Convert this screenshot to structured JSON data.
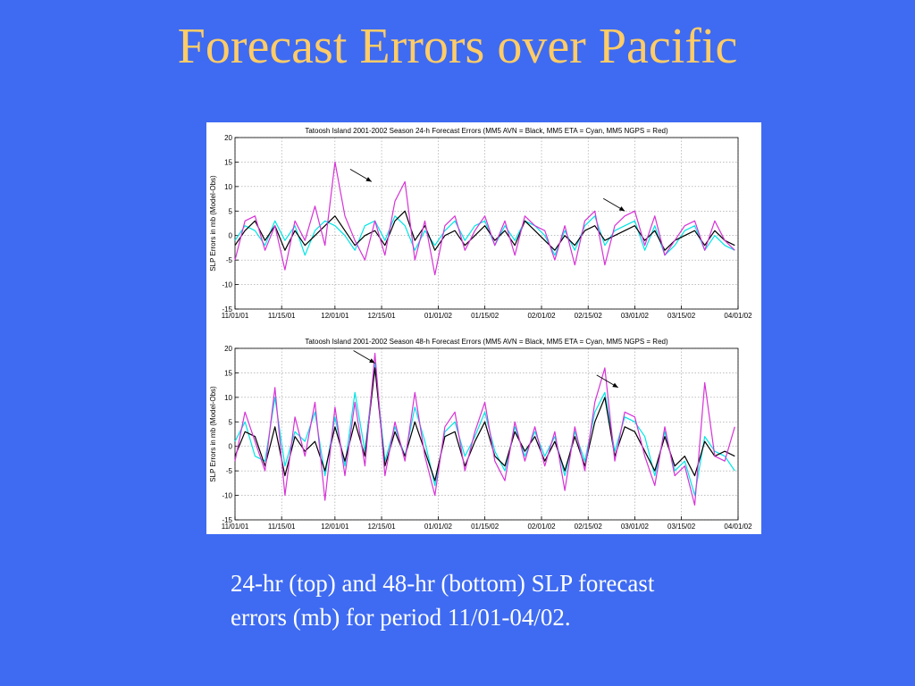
{
  "slide": {
    "title": "Forecast Errors over Pacific",
    "caption_line1": "24-hr (top) and 48-hr (bottom) SLP forecast",
    "caption_line2": "errors (mb) for period 11/01-04/02."
  },
  "colors": {
    "background": "#3f6bf2",
    "title": "#ffcc66",
    "avn": "#000000",
    "eta": "#00e5e5",
    "ngps": "#d633d6"
  },
  "chart_data": [
    {
      "type": "line",
      "title": "Tatoosh Island 2001-2002 Season 24-h Forecast Errors (MM5 AVN = Black, MM5 ETA = Cyan, MM5 NGPS = Red)",
      "ylabel": "SLP Errors in mb (Model-Obs)",
      "xlabel": "",
      "xlim": [
        "2001-11-01",
        "2002-04-01"
      ],
      "ylim": [
        -15,
        20
      ],
      "yticks": [
        -15,
        -10,
        -5,
        0,
        5,
        10,
        15,
        20
      ],
      "xtick_labels": [
        "11/01/01",
        "11/15/01",
        "12/01/01",
        "12/15/01",
        "01/01/02",
        "01/15/02",
        "02/01/02",
        "02/15/02",
        "03/01/02",
        "03/15/02",
        "04/01/02"
      ],
      "grid": true,
      "x": [
        "2001-11-01",
        "2001-11-04",
        "2001-11-07",
        "2001-11-10",
        "2001-11-13",
        "2001-11-16",
        "2001-11-19",
        "2001-11-22",
        "2001-11-25",
        "2001-11-28",
        "2001-12-01",
        "2001-12-04",
        "2001-12-07",
        "2001-12-10",
        "2001-12-13",
        "2001-12-16",
        "2001-12-19",
        "2001-12-22",
        "2001-12-25",
        "2001-12-28",
        "2001-12-31",
        "2002-01-03",
        "2002-01-06",
        "2002-01-09",
        "2002-01-12",
        "2002-01-15",
        "2002-01-18",
        "2002-01-21",
        "2002-01-24",
        "2002-01-27",
        "2002-01-30",
        "2002-02-02",
        "2002-02-05",
        "2002-02-08",
        "2002-02-11",
        "2002-02-14",
        "2002-02-17",
        "2002-02-20",
        "2002-02-23",
        "2002-02-26",
        "2002-03-01",
        "2002-03-04",
        "2002-03-07",
        "2002-03-10",
        "2002-03-13",
        "2002-03-16",
        "2002-03-19",
        "2002-03-22",
        "2002-03-25",
        "2002-03-28",
        "2002-03-31"
      ],
      "series": [
        {
          "name": "MM5 AVN",
          "color": "#000000",
          "values": [
            -2,
            1,
            3,
            -1,
            2,
            -3,
            1,
            -2,
            0,
            2,
            4,
            1,
            -2,
            0,
            1,
            -2,
            3,
            5,
            -1,
            2,
            -3,
            0,
            1,
            -2,
            0,
            2,
            -1,
            1,
            -2,
            3,
            1,
            -1,
            -3,
            0,
            -2,
            1,
            2,
            -1,
            0,
            1,
            2,
            -1,
            1,
            -3,
            -1,
            0,
            1,
            -2,
            1,
            -1,
            -2
          ]
        },
        {
          "name": "MM5 ETA",
          "color": "#00e5e5",
          "values": [
            -1,
            2,
            1,
            -2,
            3,
            -1,
            2,
            -4,
            1,
            3,
            2,
            0,
            -3,
            2,
            3,
            -1,
            4,
            2,
            -3,
            1,
            -2,
            1,
            3,
            -1,
            2,
            3,
            -2,
            2,
            -1,
            3,
            2,
            0,
            -4,
            1,
            -3,
            2,
            4,
            -2,
            1,
            2,
            3,
            -3,
            2,
            -4,
            -2,
            1,
            2,
            -3,
            0,
            -2,
            -3
          ]
        },
        {
          "name": "MM5 NGPS",
          "color": "#d633d6",
          "values": [
            -5,
            3,
            4,
            -3,
            2,
            -7,
            3,
            -1,
            6,
            -2,
            15,
            4,
            -1,
            -5,
            3,
            -4,
            7,
            11,
            -5,
            3,
            -8,
            2,
            4,
            -3,
            1,
            4,
            -2,
            3,
            -4,
            4,
            2,
            1,
            -5,
            2,
            -6,
            3,
            5,
            -6,
            2,
            4,
            5,
            -2,
            4,
            -4,
            -1,
            2,
            3,
            -3,
            3,
            -1,
            -3
          ]
        }
      ],
      "annotations": [
        {
          "type": "arrow",
          "x": "2001-12-12",
          "y": 11
        },
        {
          "type": "arrow",
          "x": "2002-02-26",
          "y": 5
        }
      ]
    },
    {
      "type": "line",
      "title": "Tatoosh Island 2001-2002 Season 48-h Forecast Errors (MM5 AVN = Black, MM5 ETA = Cyan, MM5 NGPS = Red)",
      "ylabel": "SLP Errors in mb (Model-Obs)",
      "xlabel": "",
      "xlim": [
        "2001-11-01",
        "2002-04-01"
      ],
      "ylim": [
        -15,
        20
      ],
      "yticks": [
        -15,
        -10,
        -5,
        0,
        5,
        10,
        15,
        20
      ],
      "xtick_labels": [
        "11/01/01",
        "11/15/01",
        "12/01/01",
        "12/15/01",
        "01/01/02",
        "01/15/02",
        "02/01/02",
        "02/15/02",
        "03/01/02",
        "03/15/02",
        "04/01/02"
      ],
      "grid": true,
      "x": [
        "2001-11-01",
        "2001-11-04",
        "2001-11-07",
        "2001-11-10",
        "2001-11-13",
        "2001-11-16",
        "2001-11-19",
        "2001-11-22",
        "2001-11-25",
        "2001-11-28",
        "2001-12-01",
        "2001-12-04",
        "2001-12-07",
        "2001-12-10",
        "2001-12-13",
        "2001-12-16",
        "2001-12-19",
        "2001-12-22",
        "2001-12-25",
        "2001-12-28",
        "2001-12-31",
        "2002-01-03",
        "2002-01-06",
        "2002-01-09",
        "2002-01-12",
        "2002-01-15",
        "2002-01-18",
        "2002-01-21",
        "2002-01-24",
        "2002-01-27",
        "2002-01-30",
        "2002-02-02",
        "2002-02-05",
        "2002-02-08",
        "2002-02-11",
        "2002-02-14",
        "2002-02-17",
        "2002-02-20",
        "2002-02-23",
        "2002-02-26",
        "2002-03-01",
        "2002-03-04",
        "2002-03-07",
        "2002-03-10",
        "2002-03-13",
        "2002-03-16",
        "2002-03-19",
        "2002-03-22",
        "2002-03-25",
        "2002-03-28",
        "2002-03-31"
      ],
      "series": [
        {
          "name": "MM5 AVN",
          "color": "#000000",
          "values": [
            -2,
            3,
            2,
            -4,
            4,
            -6,
            2,
            -1,
            1,
            -5,
            4,
            -3,
            5,
            -2,
            16,
            -4,
            3,
            -2,
            5,
            -1,
            -7,
            2,
            3,
            -4,
            1,
            5,
            -2,
            -4,
            3,
            -1,
            2,
            -3,
            1,
            -5,
            2,
            -4,
            5,
            10,
            -2,
            4,
            3,
            -1,
            -5,
            2,
            -4,
            -2,
            -6,
            1,
            -2,
            -1,
            -2
          ]
        },
        {
          "name": "MM5 ETA",
          "color": "#00e5e5",
          "values": [
            1,
            5,
            -2,
            -3,
            10,
            -4,
            3,
            1,
            7,
            -6,
            6,
            -4,
            11,
            -1,
            17,
            -3,
            4,
            -2,
            8,
            1,
            -8,
            3,
            5,
            -2,
            2,
            7,
            -1,
            -5,
            4,
            -2,
            3,
            -2,
            2,
            -6,
            3,
            -3,
            7,
            11,
            -1,
            6,
            5,
            2,
            -6,
            3,
            -5,
            -3,
            -10,
            2,
            -1,
            -2,
            -5
          ]
        },
        {
          "name": "MM5 NGPS",
          "color": "#d633d6",
          "values": [
            -3,
            7,
            1,
            -5,
            12,
            -10,
            6,
            -2,
            9,
            -11,
            8,
            -6,
            9,
            -4,
            19,
            -6,
            5,
            -3,
            11,
            -2,
            -10,
            4,
            7,
            -5,
            3,
            9,
            -3,
            -7,
            5,
            -3,
            4,
            -4,
            3,
            -9,
            4,
            -5,
            9,
            16,
            -3,
            7,
            6,
            -2,
            -8,
            4,
            -6,
            -4,
            -12,
            13,
            -2,
            -3,
            4
          ]
        }
      ],
      "annotations": [
        {
          "type": "arrow",
          "x": "2001-12-13",
          "y": 17
        },
        {
          "type": "arrow",
          "x": "2002-02-24",
          "y": 12
        }
      ]
    }
  ]
}
